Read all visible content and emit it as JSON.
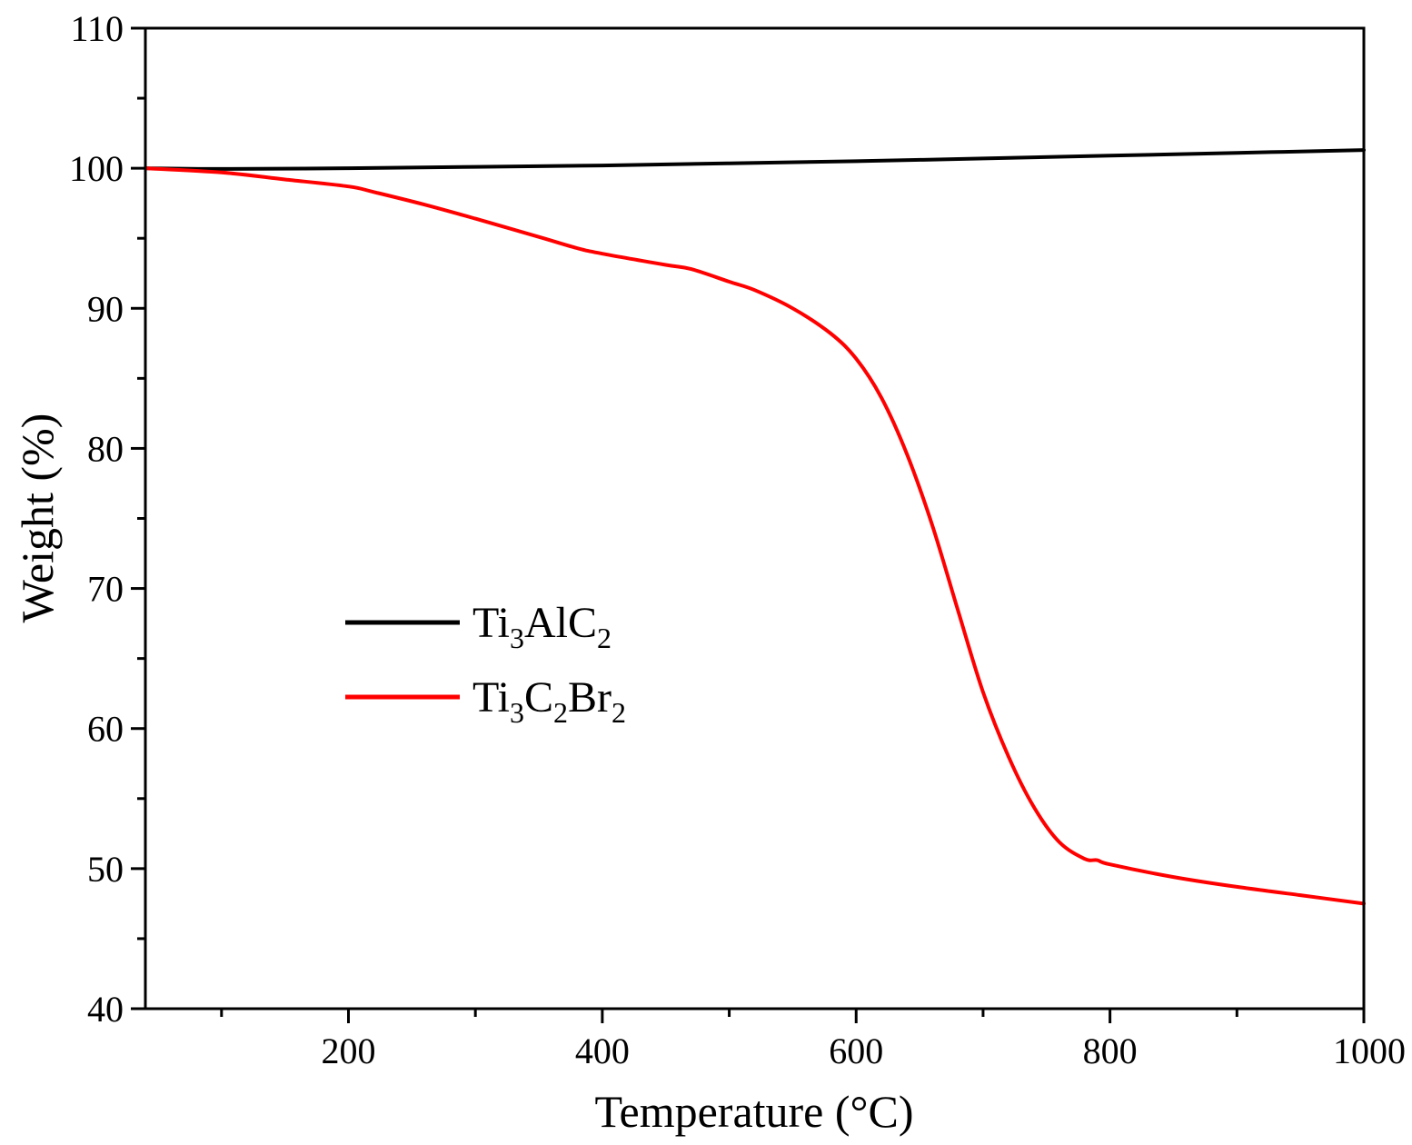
{
  "chart_data": {
    "type": "line",
    "title": "",
    "xlabel": "Temperature (°C)",
    "ylabel": "Weight (%)",
    "xlim": [
      40,
      1000
    ],
    "ylim": [
      40,
      110
    ],
    "x_ticks": [
      200,
      400,
      600,
      800,
      1000
    ],
    "x_minor_ticks": [
      100,
      300,
      500,
      700,
      900
    ],
    "y_ticks": [
      40,
      50,
      60,
      70,
      80,
      90,
      100,
      110
    ],
    "y_minor_ticks": [
      45,
      55,
      65,
      75,
      85,
      95,
      105
    ],
    "grid": false,
    "legend_position": "center-left",
    "series": [
      {
        "name": "Ti3AlC2",
        "label_parts": [
          {
            "t": "Ti",
            "sub": false
          },
          {
            "t": "3",
            "sub": true
          },
          {
            "t": "AlC",
            "sub": false
          },
          {
            "t": "2",
            "sub": true
          }
        ],
        "color": "#000000",
        "x": [
          40,
          100,
          200,
          300,
          400,
          500,
          600,
          700,
          800,
          900,
          1000
        ],
        "y": [
          100.0,
          99.95,
          100.0,
          100.1,
          100.2,
          100.35,
          100.5,
          100.7,
          100.9,
          101.1,
          101.3
        ]
      },
      {
        "name": "Ti3C2Br2",
        "label_parts": [
          {
            "t": "Ti",
            "sub": false
          },
          {
            "t": "3",
            "sub": true
          },
          {
            "t": "C",
            "sub": false
          },
          {
            "t": "2",
            "sub": true
          },
          {
            "t": "Br",
            "sub": false
          },
          {
            "t": "2",
            "sub": true
          }
        ],
        "color": "#ff0000",
        "x": [
          40,
          100,
          150,
          200,
          220,
          260,
          300,
          350,
          380,
          400,
          450,
          470,
          500,
          520,
          550,
          580,
          600,
          620,
          640,
          660,
          680,
          700,
          720,
          740,
          760,
          780,
          790,
          800,
          850,
          900,
          950,
          1000
        ],
        "y": [
          100.0,
          99.7,
          99.2,
          98.7,
          98.3,
          97.4,
          96.4,
          95.1,
          94.3,
          93.9,
          93.1,
          92.8,
          91.9,
          91.3,
          90.0,
          88.2,
          86.4,
          83.6,
          79.6,
          74.5,
          68.5,
          62.6,
          58.0,
          54.4,
          51.9,
          50.7,
          50.6,
          50.3,
          49.4,
          48.7,
          48.1,
          47.5
        ]
      }
    ]
  }
}
